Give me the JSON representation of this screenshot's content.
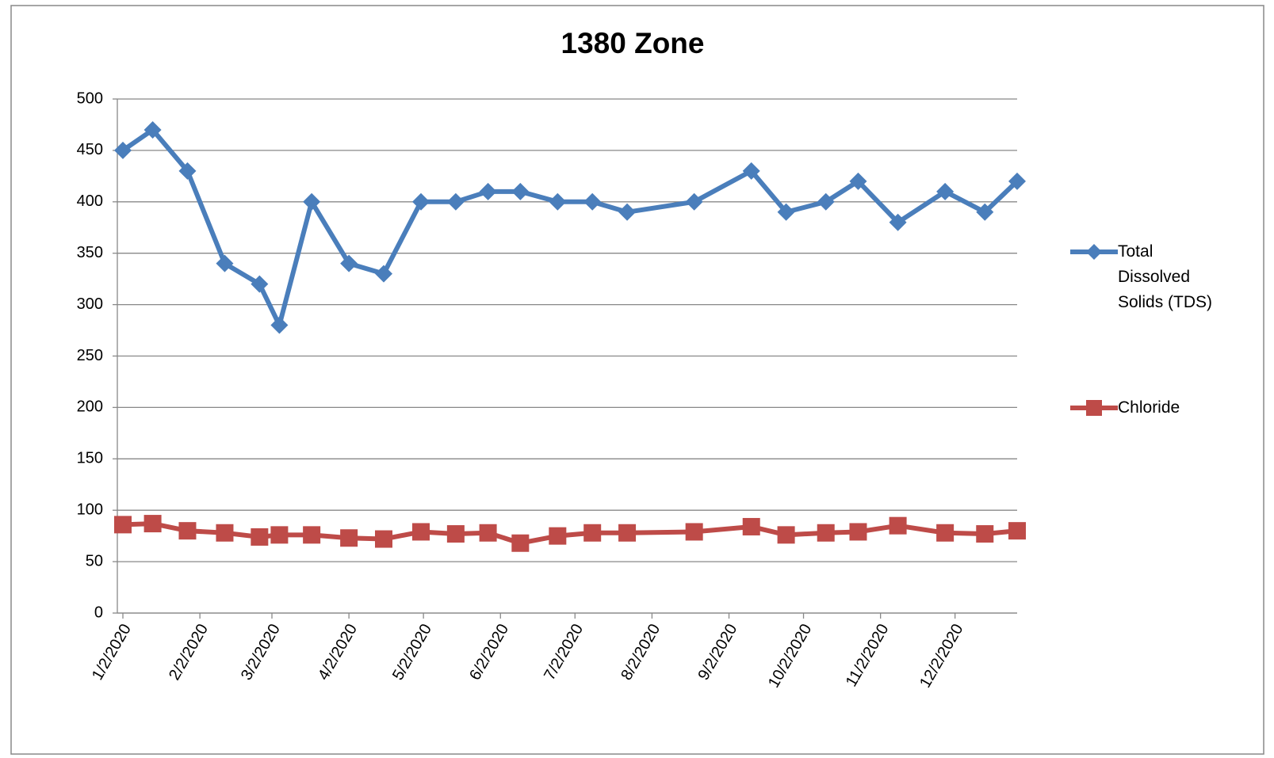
{
  "chart_data": {
    "type": "line",
    "title": "1380 Zone",
    "x": [
      0,
      12,
      26,
      41,
      55,
      63,
      76,
      91,
      105,
      120,
      134,
      147,
      160,
      175,
      189,
      203,
      230,
      253,
      267,
      283,
      296,
      312,
      331,
      347,
      360
    ],
    "series": [
      {
        "name": "Total Dissolved Solids (TDS)",
        "color": "#4a7ebb",
        "marker": "diamond",
        "values": [
          450,
          470,
          430,
          340,
          320,
          280,
          400,
          340,
          330,
          400,
          400,
          410,
          410,
          400,
          400,
          390,
          400,
          430,
          390,
          400,
          420,
          380,
          410,
          390,
          420
        ]
      },
      {
        "name": "Chloride",
        "color": "#be4b48",
        "marker": "square",
        "values": [
          86,
          87,
          80,
          78,
          74,
          76,
          76,
          73,
          72,
          79,
          77,
          78,
          68,
          75,
          78,
          78,
          79,
          84,
          76,
          78,
          79,
          85,
          78,
          77,
          80
        ]
      }
    ],
    "xlim": [
      0,
      360
    ],
    "xticks": [
      {
        "value": 0,
        "label": "1/2/2020"
      },
      {
        "value": 31,
        "label": "2/2/2020"
      },
      {
        "value": 60,
        "label": "3/2/2020"
      },
      {
        "value": 91,
        "label": "4/2/2020"
      },
      {
        "value": 121,
        "label": "5/2/2020"
      },
      {
        "value": 152,
        "label": "6/2/2020"
      },
      {
        "value": 182,
        "label": "7/2/2020"
      },
      {
        "value": 213,
        "label": "8/2/2020"
      },
      {
        "value": 244,
        "label": "9/2/2020"
      },
      {
        "value": 274,
        "label": "10/2/2020"
      },
      {
        "value": 305,
        "label": "11/2/2020"
      },
      {
        "value": 335,
        "label": "12/2/2020"
      }
    ],
    "ylim": [
      0,
      500
    ],
    "yticks": [
      0,
      50,
      100,
      150,
      200,
      250,
      300,
      350,
      400,
      450,
      500
    ],
    "grid": true,
    "legend": "right"
  }
}
